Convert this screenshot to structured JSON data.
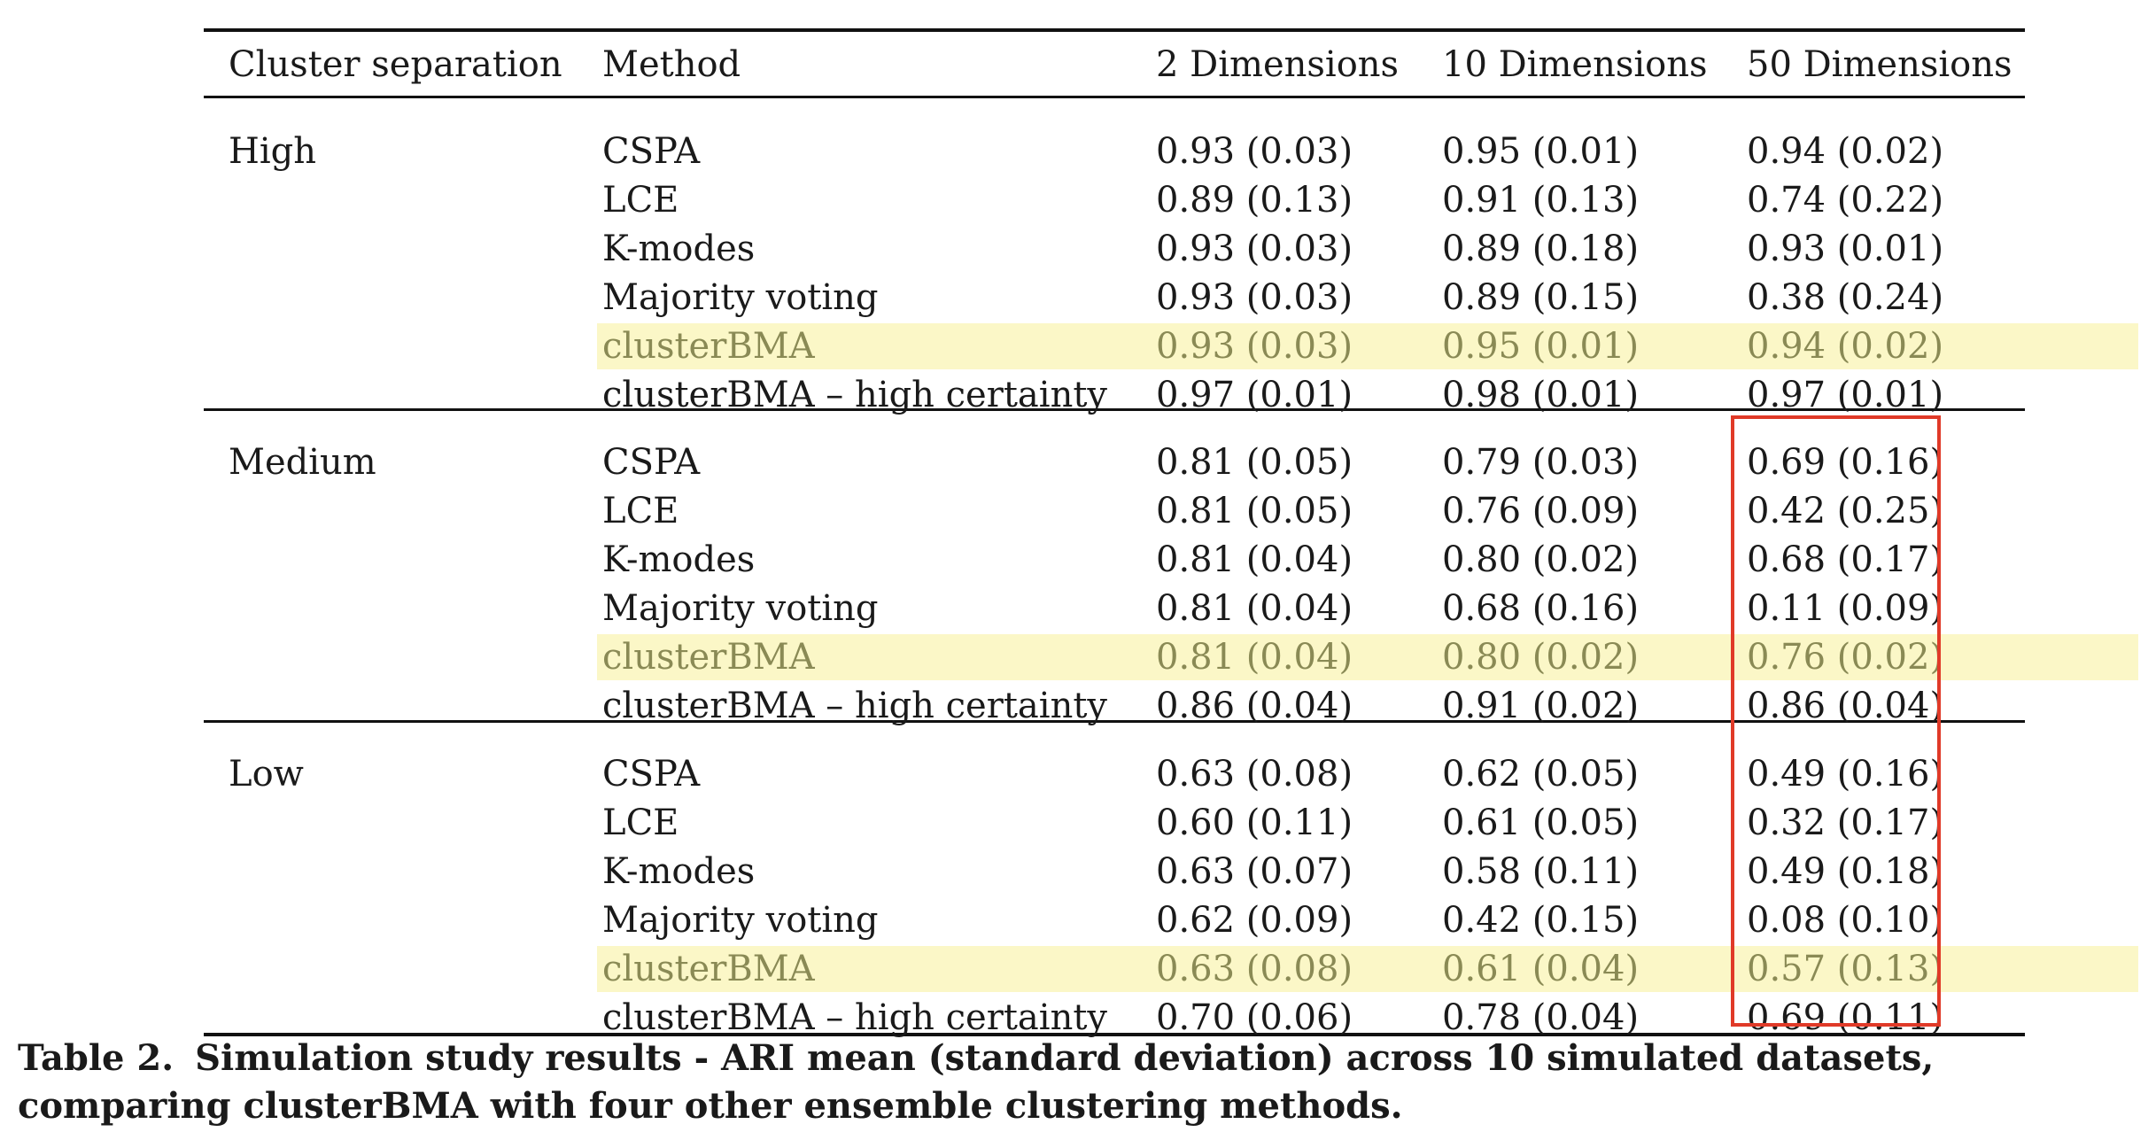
{
  "table": {
    "headers": [
      "Cluster separation",
      "Method",
      "2 Dimensions",
      "10 Dimensions",
      "50 Dimensions"
    ],
    "groups": [
      {
        "separation": "High",
        "rows": [
          {
            "method": "CSPA",
            "d2": "0.93 (0.03)",
            "d10": "0.95 (0.01)",
            "d50": "0.94 (0.02)"
          },
          {
            "method": "LCE",
            "d2": "0.89 (0.13)",
            "d10": "0.91 (0.13)",
            "d50": "0.74 (0.22)"
          },
          {
            "method": "K-modes",
            "d2": "0.93 (0.03)",
            "d10": "0.89 (0.18)",
            "d50": "0.93 (0.01)"
          },
          {
            "method": "Majority voting",
            "d2": "0.93 (0.03)",
            "d10": "0.89 (0.15)",
            "d50": "0.38 (0.24)"
          },
          {
            "method": "clusterBMA",
            "d2": "0.93 (0.03)",
            "d10": "0.95 (0.01)",
            "d50": "0.94 (0.02)"
          },
          {
            "method": "clusterBMA – high certainty",
            "d2": "0.97 (0.01)",
            "d10": "0.98 (0.01)",
            "d50": "0.97 (0.01)"
          }
        ]
      },
      {
        "separation": "Medium",
        "rows": [
          {
            "method": "CSPA",
            "d2": "0.81 (0.05)",
            "d10": "0.79 (0.03)",
            "d50": "0.69 (0.16)"
          },
          {
            "method": "LCE",
            "d2": "0.81 (0.05)",
            "d10": "0.76 (0.09)",
            "d50": "0.42 (0.25)"
          },
          {
            "method": "K-modes",
            "d2": "0.81 (0.04)",
            "d10": "0.80 (0.02)",
            "d50": "0.68 (0.17)"
          },
          {
            "method": "Majority voting",
            "d2": "0.81 (0.04)",
            "d10": "0.68 (0.16)",
            "d50": "0.11 (0.09)"
          },
          {
            "method": "clusterBMA",
            "d2": "0.81 (0.04)",
            "d10": "0.80 (0.02)",
            "d50": "0.76 (0.02)"
          },
          {
            "method": "clusterBMA – high certainty",
            "d2": "0.86 (0.04)",
            "d10": "0.91 (0.02)",
            "d50": "0.86 (0.04)"
          }
        ]
      },
      {
        "separation": "Low",
        "rows": [
          {
            "method": "CSPA",
            "d2": "0.63 (0.08)",
            "d10": "0.62 (0.05)",
            "d50": "0.49 (0.16)"
          },
          {
            "method": "LCE",
            "d2": "0.60 (0.11)",
            "d10": "0.61 (0.05)",
            "d50": "0.32 (0.17)"
          },
          {
            "method": "K-modes",
            "d2": "0.63 (0.07)",
            "d10": "0.58 (0.11)",
            "d50": "0.49 (0.18)"
          },
          {
            "method": "Majority voting",
            "d2": "0.62 (0.09)",
            "d10": "0.42 (0.15)",
            "d50": "0.08 (0.10)"
          },
          {
            "method": "clusterBMA",
            "d2": "0.63 (0.08)",
            "d10": "0.61 (0.04)",
            "d50": "0.57 (0.13)"
          },
          {
            "method": "clusterBMA – high certainty",
            "d2": "0.70 (0.06)",
            "d10": "0.78 (0.04)",
            "d50": "0.69 (0.11)"
          }
        ]
      }
    ]
  },
  "caption": {
    "label": "Table 2.",
    "text": "Simulation study results - ARI mean (standard deviation) across 10 simulated datasets, comparing clusterBMA with four other ensemble clustering methods."
  },
  "colors": {
    "highlight_background": "#fbf7c7",
    "highlight_text": "#8a8a55",
    "red_box": "#e03a28"
  }
}
